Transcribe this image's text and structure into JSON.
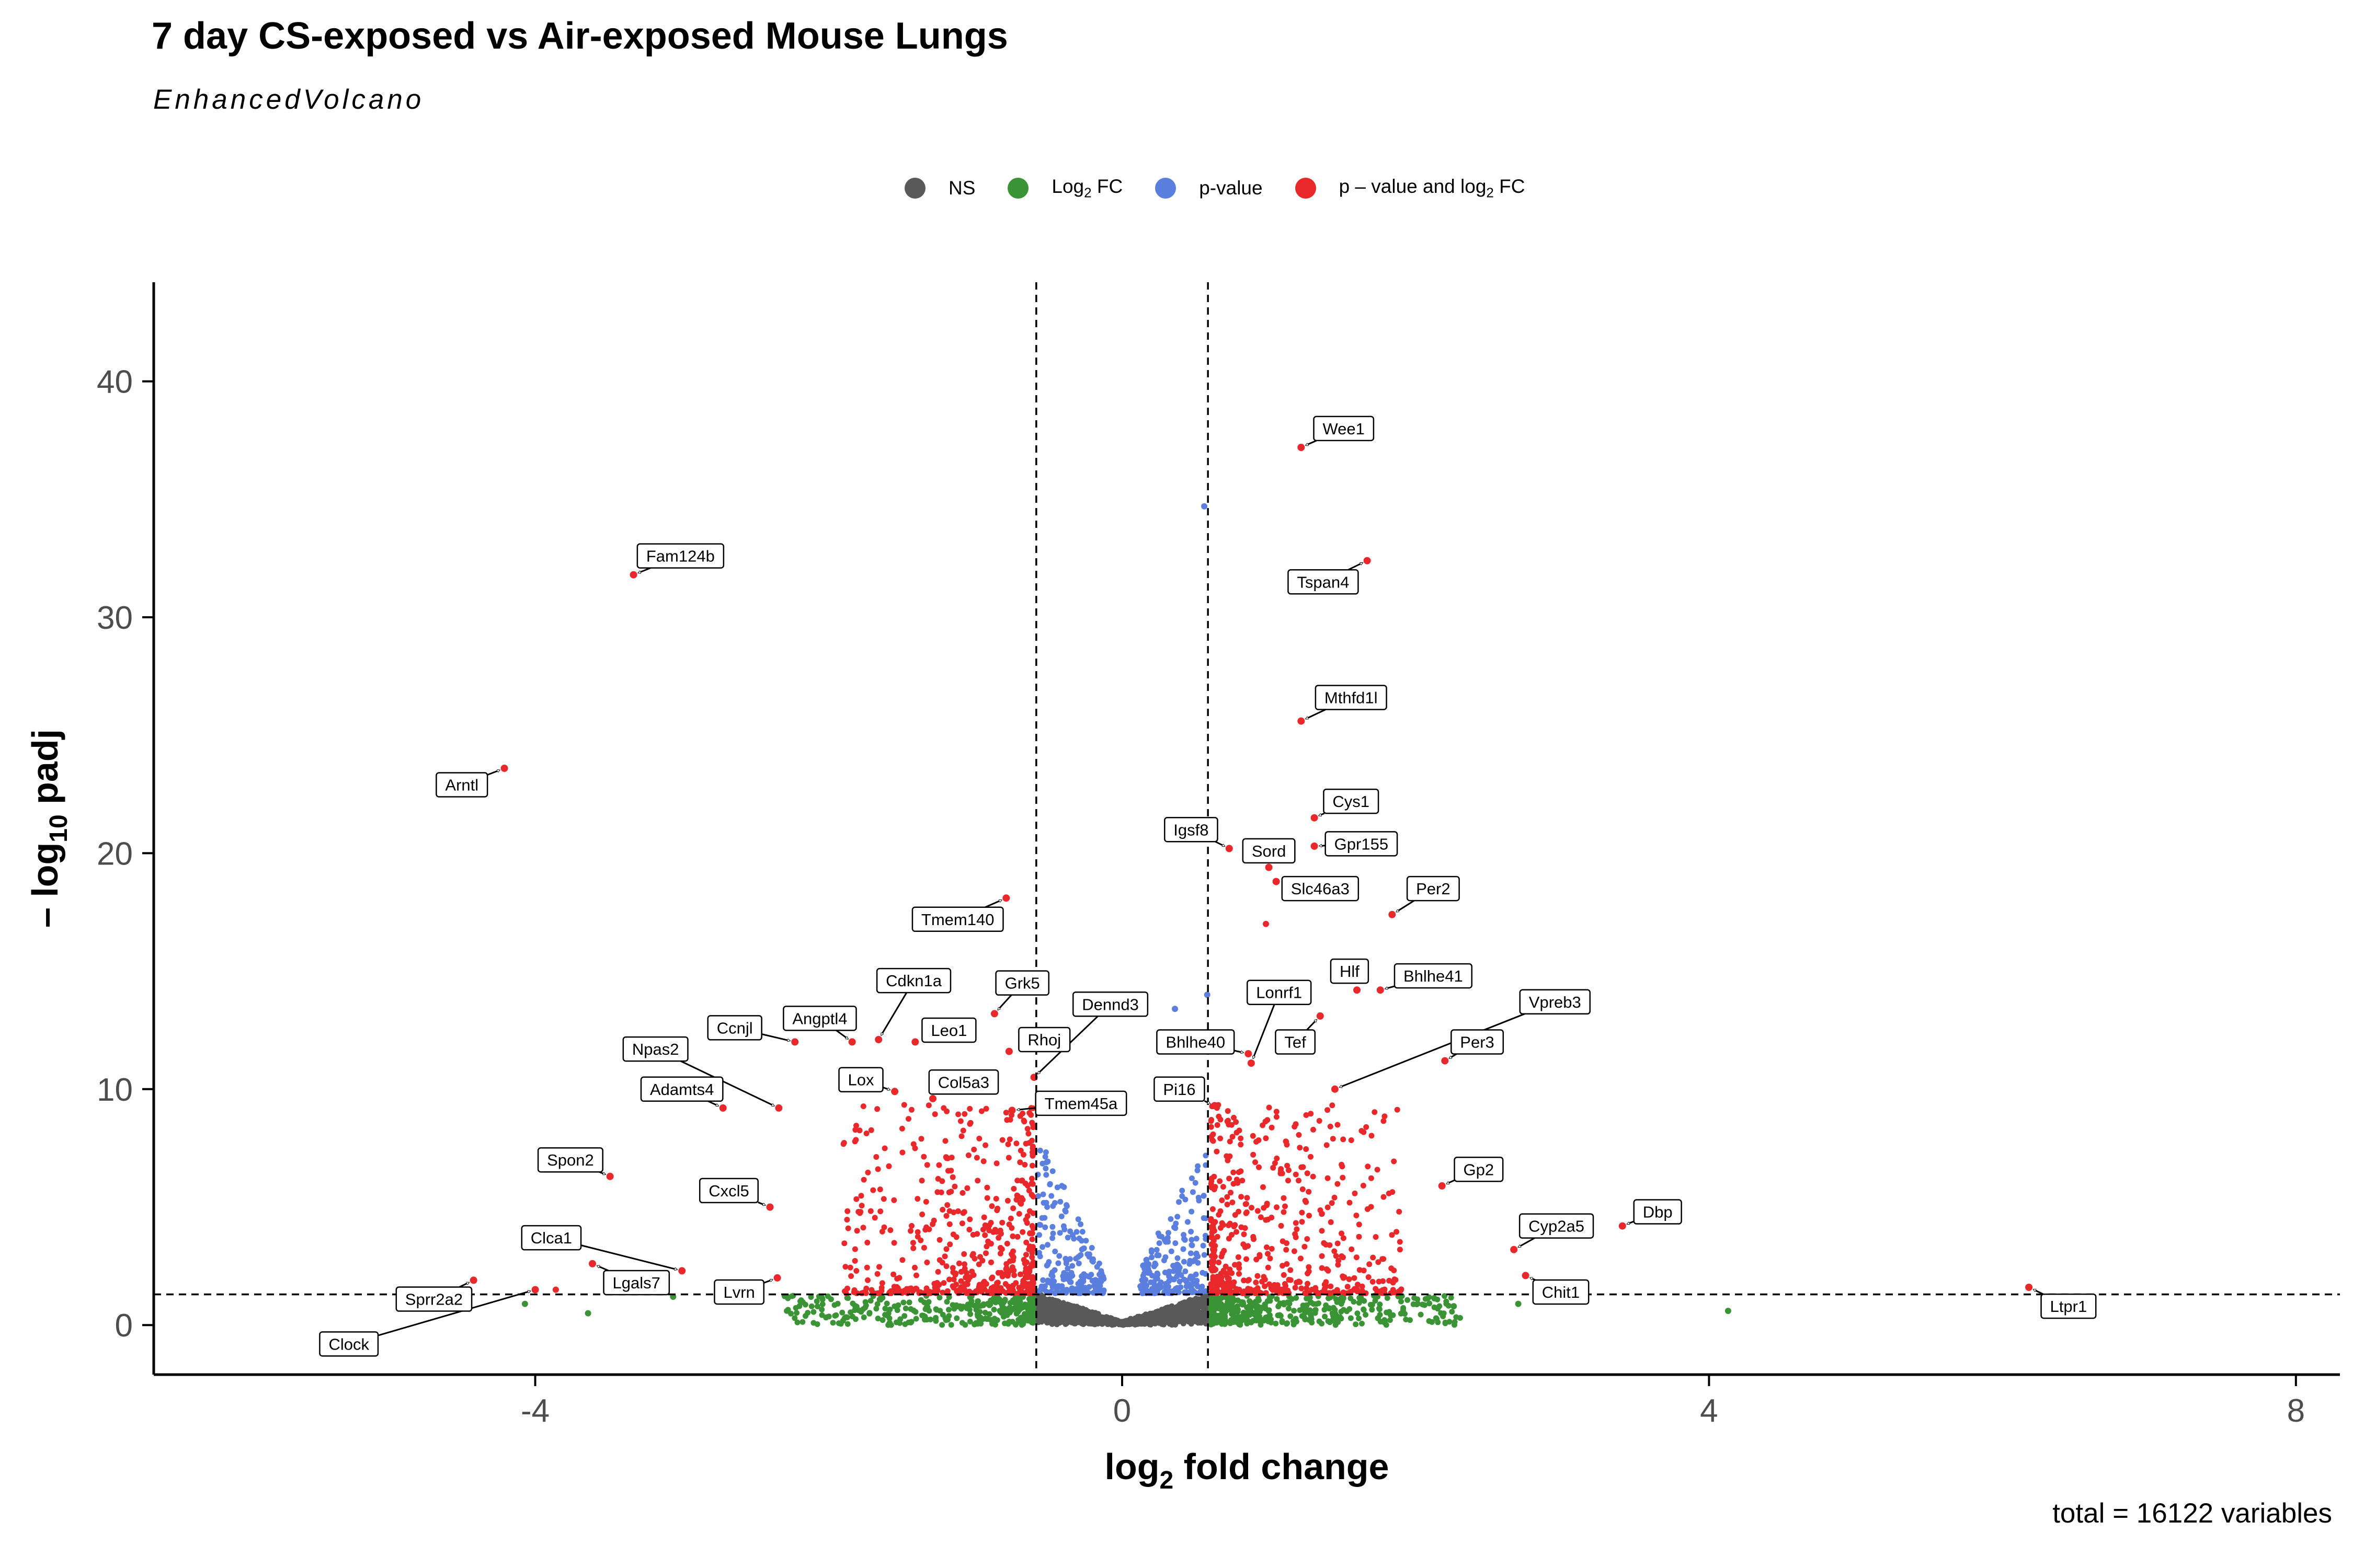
{
  "header": {
    "title": "7 day CS-exposed vs Air-exposed Mouse Lungs",
    "subtitle": "EnhancedVolcano",
    "caption": "total = 16122 variables"
  },
  "legend": {
    "position": "top",
    "items": [
      {
        "label": "NS",
        "color": "#595959"
      },
      {
        "label": "Log",
        "sub": "2",
        "suffix": " FC",
        "color": "#3a9334"
      },
      {
        "label": "p-value",
        "color": "#5b7fdf"
      },
      {
        "label": "p – value and log",
        "sub": "2",
        "suffix": " FC",
        "color": "#e8282a"
      }
    ]
  },
  "chart_data": {
    "type": "scatter",
    "xlabel": "log2 fold change",
    "ylabel": "– log10 padj",
    "xlim": [
      -6.6,
      8.3
    ],
    "ylim": [
      -2.1,
      44.2
    ],
    "xticks": [
      -4,
      0,
      4,
      8
    ],
    "yticks": [
      0,
      10,
      20,
      30,
      40
    ],
    "grid": false,
    "cutoffs": {
      "log2fc": [
        -0.585,
        0.585
      ],
      "padj_neglog10": 1.3
    },
    "colors": {
      "NS": "#595959",
      "Log2 FC": "#3a9334",
      "p-value": "#5b7fdf",
      "p-value and log2 FC": "#e8282a"
    },
    "labeled_genes": [
      {
        "gene": "Wee1",
        "x": 1.22,
        "y": 37.2,
        "lx": 1.51,
        "ly": 38.0
      },
      {
        "gene": "Tspan4",
        "x": 1.67,
        "y": 32.4,
        "lx": 1.37,
        "ly": 31.5
      },
      {
        "gene": "Fam124b",
        "x": -3.33,
        "y": 31.8,
        "lx": -3.01,
        "ly": 32.6
      },
      {
        "gene": "Mthfd1l",
        "x": 1.22,
        "y": 25.6,
        "lx": 1.56,
        "ly": 26.6
      },
      {
        "gene": "Arntl",
        "x": -4.21,
        "y": 23.6,
        "lx": -4.5,
        "ly": 22.9
      },
      {
        "gene": "Cys1",
        "x": 1.31,
        "y": 21.5,
        "lx": 1.56,
        "ly": 22.2
      },
      {
        "gene": "Gpr155",
        "x": 1.31,
        "y": 20.3,
        "lx": 1.63,
        "ly": 20.4
      },
      {
        "gene": "Igsf8",
        "x": 0.73,
        "y": 20.2,
        "lx": 0.47,
        "ly": 21.0
      },
      {
        "gene": "Sord",
        "x": 1.0,
        "y": 19.4,
        "lx": 1.0,
        "ly": 20.1
      },
      {
        "gene": "Slc46a3",
        "x": 1.05,
        "y": 18.8,
        "lx": 1.35,
        "ly": 18.5
      },
      {
        "gene": "Tmem140",
        "x": -0.79,
        "y": 18.1,
        "lx": -1.12,
        "ly": 17.2
      },
      {
        "gene": "Per2",
        "x": 1.84,
        "y": 17.4,
        "lx": 2.12,
        "ly": 18.5
      },
      {
        "gene": "Hlf",
        "x": 1.6,
        "y": 14.2,
        "lx": 1.55,
        "ly": 15.0
      },
      {
        "gene": "Bhlhe41",
        "x": 1.76,
        "y": 14.2,
        "lx": 2.12,
        "ly": 14.8
      },
      {
        "gene": "Cdkn1a",
        "x": -1.66,
        "y": 12.1,
        "lx": -1.42,
        "ly": 14.6
      },
      {
        "gene": "Grk5",
        "x": -0.87,
        "y": 13.2,
        "lx": -0.68,
        "ly": 14.5
      },
      {
        "gene": "Dennd3",
        "x": -0.6,
        "y": 10.5,
        "lx": -0.08,
        "ly": 13.6
      },
      {
        "gene": "Lonrf1",
        "x": 0.88,
        "y": 11.1,
        "lx": 1.07,
        "ly": 14.1
      },
      {
        "gene": "Vpreb3",
        "x": 1.45,
        "y": 10.0,
        "lx": 2.95,
        "ly": 13.7
      },
      {
        "gene": "Tef",
        "x": 1.35,
        "y": 13.1,
        "lx": 1.18,
        "ly": 12.0
      },
      {
        "gene": "Ccnjl",
        "x": -2.23,
        "y": 12.0,
        "lx": -2.64,
        "ly": 12.6
      },
      {
        "gene": "Angptl4",
        "x": -1.84,
        "y": 12.0,
        "lx": -2.06,
        "ly": 13.0
      },
      {
        "gene": "Leo1",
        "x": -1.41,
        "y": 12.0,
        "lx": -1.18,
        "ly": 12.5
      },
      {
        "gene": "Per3",
        "x": 2.2,
        "y": 11.2,
        "lx": 2.42,
        "ly": 12.0
      },
      {
        "gene": "Npas2",
        "x": -2.34,
        "y": 9.2,
        "lx": -3.18,
        "ly": 11.7
      },
      {
        "gene": "Rhoj",
        "x": -0.77,
        "y": 11.6,
        "lx": -0.53,
        "ly": 12.1
      },
      {
        "gene": "Bhlhe40",
        "x": 0.86,
        "y": 11.5,
        "lx": 0.5,
        "ly": 12.0
      },
      {
        "gene": "Lox",
        "x": -1.55,
        "y": 9.9,
        "lx": -1.78,
        "ly": 10.4
      },
      {
        "gene": "Col5a3",
        "x": -1.29,
        "y": 9.6,
        "lx": -1.08,
        "ly": 10.3
      },
      {
        "gene": "Adamts4",
        "x": -2.72,
        "y": 9.2,
        "lx": -3.0,
        "ly": 10.0
      },
      {
        "gene": "Pi16",
        "x": 0.63,
        "y": 9.3,
        "lx": 0.39,
        "ly": 10.0
      },
      {
        "gene": "Tmem45a",
        "x": -0.75,
        "y": 9.1,
        "lx": -0.28,
        "ly": 9.4
      },
      {
        "gene": "Spon2",
        "x": -3.49,
        "y": 6.3,
        "lx": -3.76,
        "ly": 7.0
      },
      {
        "gene": "Gp2",
        "x": 2.18,
        "y": 5.9,
        "lx": 2.43,
        "ly": 6.6
      },
      {
        "gene": "Cxcl5",
        "x": -2.4,
        "y": 5.0,
        "lx": -2.68,
        "ly": 5.7
      },
      {
        "gene": "Dbp",
        "x": 3.41,
        "y": 4.2,
        "lx": 3.65,
        "ly": 4.8
      },
      {
        "gene": "Cyp2a5",
        "x": 2.67,
        "y": 3.2,
        "lx": 2.96,
        "ly": 4.2
      },
      {
        "gene": "Clca1",
        "x": -3.0,
        "y": 2.3,
        "lx": -3.89,
        "ly": 3.7
      },
      {
        "gene": "Lgals7",
        "x": -3.61,
        "y": 2.6,
        "lx": -3.31,
        "ly": 1.8
      },
      {
        "gene": "Chit1",
        "x": 2.75,
        "y": 2.1,
        "lx": 2.99,
        "ly": 1.4
      },
      {
        "gene": "Lvrn",
        "x": -2.35,
        "y": 2.0,
        "lx": -2.61,
        "ly": 1.4
      },
      {
        "gene": "Sprr2a2",
        "x": -4.42,
        "y": 1.9,
        "lx": -4.69,
        "ly": 1.1
      },
      {
        "gene": "Ltpr1",
        "x": 6.18,
        "y": 1.6,
        "lx": 6.45,
        "ly": 0.8
      },
      {
        "gene": "Clock",
        "x": -4.0,
        "y": 1.5,
        "lx": -5.27,
        "ly": -0.8
      }
    ],
    "extra_points": [
      {
        "category": "p-value",
        "x": 0.56,
        "y": 34.7
      },
      {
        "category": "p-value",
        "x": 0.58,
        "y": 14.0
      },
      {
        "category": "p-value",
        "x": 0.36,
        "y": 13.4
      },
      {
        "category": "p-value and log2 FC",
        "x": 0.98,
        "y": 17.0
      },
      {
        "category": "p-value and log2 FC",
        "x": -3.86,
        "y": 1.5
      },
      {
        "category": "Log2 FC",
        "x": -4.07,
        "y": 0.9
      },
      {
        "category": "Log2 FC",
        "x": -3.64,
        "y": 0.5
      },
      {
        "category": "Log2 FC",
        "x": -3.06,
        "y": 1.2
      },
      {
        "category": "Log2 FC",
        "x": 4.13,
        "y": 0.6
      },
      {
        "category": "Log2 FC",
        "x": 2.26,
        "y": 0.8
      },
      {
        "category": "Log2 FC",
        "x": 2.7,
        "y": 0.9
      }
    ]
  }
}
